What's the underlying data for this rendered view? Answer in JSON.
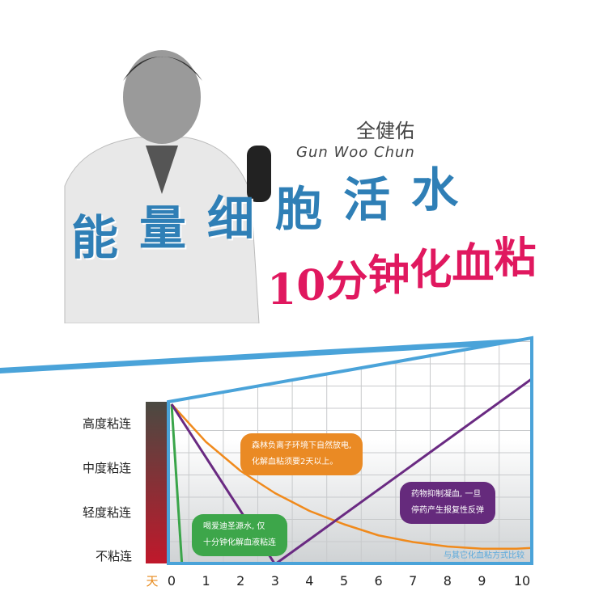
{
  "header": {
    "signature_cn": "全健佑",
    "signature_en": "Gun Woo Chun",
    "title_main": "能量细胞活水",
    "title_sub": "10分钟化血粘"
  },
  "chart_data": {
    "type": "line",
    "x_unit_label": "天",
    "x_ticks": [
      "0",
      "1",
      "2",
      "3",
      "4",
      "5",
      "6",
      "7",
      "8",
      "9",
      "10"
    ],
    "xlim": [
      0,
      10.5
    ],
    "y_levels": [
      "不粘连",
      "轻度粘连",
      "中度粘连",
      "高度粘连"
    ],
    "ylim": [
      -0.2,
      3.45
    ],
    "grid": true,
    "footnote": "与其它化血粘方式比较",
    "series": [
      {
        "key": "water",
        "color": "#3aa54a",
        "x": [
          0,
          0.3
        ],
        "y": [
          3.4,
          -0.2
        ],
        "annotation": [
          "喝爱迪圣源水, 仅",
          "十分钟化解血液粘连"
        ]
      },
      {
        "key": "forest",
        "color": "#f08a1c",
        "x": [
          0,
          1,
          2,
          3,
          4,
          5,
          6,
          7,
          8,
          9,
          10,
          10.5
        ],
        "y": [
          3.4,
          2.55,
          1.9,
          1.4,
          1.0,
          0.7,
          0.45,
          0.3,
          0.2,
          0.15,
          0.15,
          0.17
        ],
        "annotation": [
          "森林负离子环境下自然放电,",
          "化解血粘须要2天以上。"
        ]
      },
      {
        "key": "drug",
        "color": "#6a2a82",
        "x": [
          0,
          3,
          10.5
        ],
        "y": [
          3.4,
          -0.2,
          4.0
        ],
        "annotation": [
          "药物抑制凝血, 一旦",
          "停药产生报复性反弹"
        ]
      }
    ]
  },
  "colors": {
    "frame": "#4aa3d9",
    "grid": "#c8cacc",
    "bar_top": "#4a4a42",
    "bar_bottom": "#c0182b"
  }
}
